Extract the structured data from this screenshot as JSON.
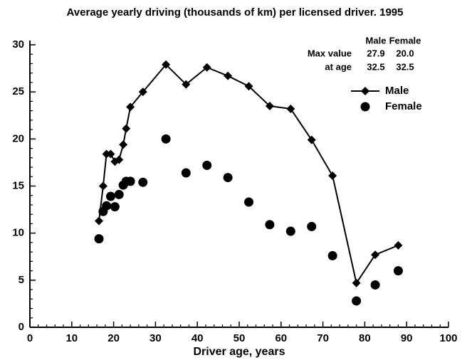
{
  "chart_data": {
    "type": "line",
    "title": "Average yearly driving (thousands of km) per licensed driver. 1995",
    "xlabel": "Driver age, years",
    "x": [
      16.5,
      17.5,
      18.3,
      19.3,
      20.3,
      21.3,
      22.3,
      23,
      24,
      27,
      32.5,
      37.3,
      42.3,
      47.3,
      52.3,
      57.3,
      62.3,
      67.3,
      72.3,
      78,
      82.5,
      88
    ],
    "series": [
      {
        "name": "Male",
        "color": "#000000",
        "marker": "diamond",
        "connected": true,
        "values": [
          11.3,
          15.0,
          18.4,
          18.4,
          17.6,
          17.8,
          19.4,
          21.1,
          23.4,
          25.0,
          27.9,
          25.8,
          27.6,
          26.7,
          25.6,
          23.5,
          23.2,
          19.9,
          16.1,
          4.7,
          7.7,
          8.7
        ]
      },
      {
        "name": "Female",
        "color": "#000000",
        "marker": "circle",
        "connected": false,
        "values": [
          9.4,
          12.3,
          12.9,
          13.9,
          12.8,
          14.1,
          15.1,
          15.5,
          15.5,
          15.4,
          20.0,
          16.4,
          17.2,
          15.9,
          13.3,
          10.9,
          10.2,
          10.7,
          7.6,
          2.8,
          4.5,
          6.0
        ]
      }
    ],
    "xlim": [
      0,
      100
    ],
    "xticks": [
      0,
      10,
      20,
      30,
      40,
      50,
      60,
      70,
      80,
      90,
      100
    ],
    "ylim": [
      0,
      30
    ],
    "yticks": [
      0,
      5,
      10,
      15,
      20,
      25,
      30
    ],
    "grid": false,
    "legend": "upper right",
    "annotation_table": {
      "header": [
        "Male",
        "Female"
      ],
      "rows": [
        [
          "Max value",
          "27.9",
          "20.0"
        ],
        [
          "at age",
          "32.5",
          "32.5"
        ]
      ]
    }
  }
}
